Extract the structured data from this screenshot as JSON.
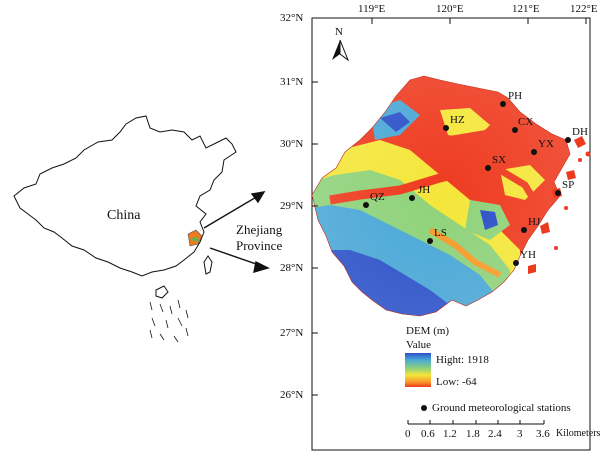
{
  "inset": {
    "country_label": "China",
    "province_label_line1": "Zhejiang",
    "province_label_line2": "Province"
  },
  "map": {
    "north_label": "N",
    "lon_ticks": [
      "119°E",
      "120°E",
      "121°E",
      "122°E"
    ],
    "lat_ticks": [
      "32°N",
      "31°N",
      "30°N",
      "29°N",
      "28°N",
      "27°N",
      "26°N"
    ],
    "stations": [
      {
        "code": "PH"
      },
      {
        "code": "HZ"
      },
      {
        "code": "CX"
      },
      {
        "code": "YX"
      },
      {
        "code": "DH"
      },
      {
        "code": "SX"
      },
      {
        "code": "JH"
      },
      {
        "code": "QZ"
      },
      {
        "code": "SP"
      },
      {
        "code": "LS"
      },
      {
        "code": "HJ"
      },
      {
        "code": "YH"
      }
    ]
  },
  "legend": {
    "title": "DEM (m)",
    "subtitle": "Value",
    "high": "Hight: 1918",
    "low": "Low: -64",
    "colors": [
      "#2a50c8",
      "#49a7d6",
      "#8fd27a",
      "#f4e63a",
      "#f79a2a",
      "#ee3a1f"
    ],
    "stations_label": "Ground meteorological stations",
    "scale_ticks": [
      "0",
      "0.6",
      "1.2",
      "1.8",
      "2.4",
      "3",
      "3.6"
    ],
    "scale_unit": "Kilometers"
  }
}
